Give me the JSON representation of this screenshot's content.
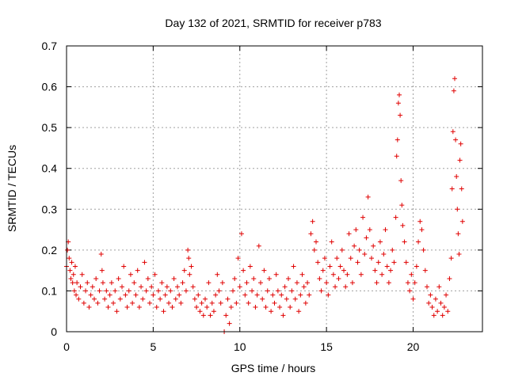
{
  "chart_data": {
    "type": "scatter",
    "title": "Day 132 of 2021, SRMTID for receiver p783",
    "xlabel": "GPS time / hours",
    "ylabel": "SRMTID / TECUs",
    "xlim": [
      0,
      24
    ],
    "ylim": [
      0,
      0.7
    ],
    "xticks": [
      0,
      5,
      10,
      15,
      20
    ],
    "yticks": [
      0,
      0.1,
      0.2,
      0.3,
      0.4,
      0.5,
      0.6,
      0.7
    ],
    "grid": true,
    "marker": "+",
    "color": "#e00000",
    "series": [
      {
        "name": "SRMTID",
        "points": [
          [
            0.0,
            0.16
          ],
          [
            0.05,
            0.2
          ],
          [
            0.1,
            0.22
          ],
          [
            0.15,
            0.18
          ],
          [
            0.2,
            0.15
          ],
          [
            0.25,
            0.13
          ],
          [
            0.3,
            0.17
          ],
          [
            0.35,
            0.12
          ],
          [
            0.4,
            0.14
          ],
          [
            0.45,
            0.1
          ],
          [
            0.5,
            0.16
          ],
          [
            0.55,
            0.09
          ],
          [
            0.6,
            0.12
          ],
          [
            0.7,
            0.08
          ],
          [
            0.8,
            0.11
          ],
          [
            0.9,
            0.14
          ],
          [
            1.0,
            0.07
          ],
          [
            1.1,
            0.1
          ],
          [
            1.2,
            0.12
          ],
          [
            1.3,
            0.06
          ],
          [
            1.4,
            0.09
          ],
          [
            1.5,
            0.11
          ],
          [
            1.6,
            0.08
          ],
          [
            1.7,
            0.13
          ],
          [
            1.8,
            0.07
          ],
          [
            1.9,
            0.1
          ],
          [
            2.0,
            0.19
          ],
          [
            2.05,
            0.15
          ],
          [
            2.1,
            0.12
          ],
          [
            2.2,
            0.08
          ],
          [
            2.3,
            0.1
          ],
          [
            2.4,
            0.06
          ],
          [
            2.5,
            0.09
          ],
          [
            2.6,
            0.12
          ],
          [
            2.7,
            0.07
          ],
          [
            2.8,
            0.1
          ],
          [
            2.9,
            0.05
          ],
          [
            3.0,
            0.13
          ],
          [
            3.1,
            0.08
          ],
          [
            3.2,
            0.11
          ],
          [
            3.3,
            0.16
          ],
          [
            3.4,
            0.09
          ],
          [
            3.5,
            0.06
          ],
          [
            3.6,
            0.1
          ],
          [
            3.7,
            0.14
          ],
          [
            3.8,
            0.07
          ],
          [
            3.9,
            0.12
          ],
          [
            4.0,
            0.09
          ],
          [
            4.1,
            0.15
          ],
          [
            4.2,
            0.06
          ],
          [
            4.3,
            0.11
          ],
          [
            4.4,
            0.08
          ],
          [
            4.5,
            0.17
          ],
          [
            4.6,
            0.1
          ],
          [
            4.7,
            0.13
          ],
          [
            4.8,
            0.07
          ],
          [
            4.9,
            0.11
          ],
          [
            5.0,
            0.09
          ],
          [
            5.1,
            0.14
          ],
          [
            5.2,
            0.06
          ],
          [
            5.3,
            0.1
          ],
          [
            5.4,
            0.08
          ],
          [
            5.5,
            0.12
          ],
          [
            5.6,
            0.05
          ],
          [
            5.7,
            0.09
          ],
          [
            5.8,
            0.11
          ],
          [
            5.9,
            0.07
          ],
          [
            6.0,
            0.1
          ],
          [
            6.1,
            0.06
          ],
          [
            6.2,
            0.13
          ],
          [
            6.3,
            0.08
          ],
          [
            6.4,
            0.11
          ],
          [
            6.5,
            0.09
          ],
          [
            6.6,
            0.07
          ],
          [
            6.7,
            0.12
          ],
          [
            6.8,
            0.15
          ],
          [
            6.9,
            0.1
          ],
          [
            7.0,
            0.2
          ],
          [
            7.05,
            0.18
          ],
          [
            7.1,
            0.14
          ],
          [
            7.2,
            0.16
          ],
          [
            7.3,
            0.11
          ],
          [
            7.4,
            0.08
          ],
          [
            7.5,
            0.06
          ],
          [
            7.6,
            0.09
          ],
          [
            7.7,
            0.05
          ],
          [
            7.8,
            0.07
          ],
          [
            7.9,
            0.04
          ],
          [
            8.0,
            0.08
          ],
          [
            8.1,
            0.06
          ],
          [
            8.2,
            0.12
          ],
          [
            8.3,
            0.04
          ],
          [
            8.4,
            0.07
          ],
          [
            8.5,
            0.05
          ],
          [
            8.6,
            0.09
          ],
          [
            8.7,
            0.14
          ],
          [
            8.8,
            0.1
          ],
          [
            8.9,
            0.07
          ],
          [
            9.0,
            0.12
          ],
          [
            9.1,
            0.0
          ],
          [
            9.2,
            0.04
          ],
          [
            9.3,
            0.08
          ],
          [
            9.4,
            0.02
          ],
          [
            9.5,
            0.06
          ],
          [
            9.6,
            0.1
          ],
          [
            9.7,
            0.13
          ],
          [
            9.8,
            0.07
          ],
          [
            9.9,
            0.18
          ],
          [
            10.0,
            0.11
          ],
          [
            10.1,
            0.24
          ],
          [
            10.2,
            0.15
          ],
          [
            10.3,
            0.09
          ],
          [
            10.4,
            0.12
          ],
          [
            10.5,
            0.07
          ],
          [
            10.6,
            0.16
          ],
          [
            10.7,
            0.1
          ],
          [
            10.8,
            0.13
          ],
          [
            10.9,
            0.06
          ],
          [
            11.0,
            0.09
          ],
          [
            11.1,
            0.21
          ],
          [
            11.2,
            0.12
          ],
          [
            11.3,
            0.08
          ],
          [
            11.4,
            0.15
          ],
          [
            11.5,
            0.06
          ],
          [
            11.6,
            0.1
          ],
          [
            11.7,
            0.13
          ],
          [
            11.8,
            0.05
          ],
          [
            11.9,
            0.09
          ],
          [
            12.0,
            0.07
          ],
          [
            12.1,
            0.14
          ],
          [
            12.2,
            0.1
          ],
          [
            12.3,
            0.06
          ],
          [
            12.4,
            0.09
          ],
          [
            12.5,
            0.04
          ],
          [
            12.6,
            0.11
          ],
          [
            12.7,
            0.08
          ],
          [
            12.8,
            0.13
          ],
          [
            12.9,
            0.06
          ],
          [
            13.0,
            0.1
          ],
          [
            13.1,
            0.16
          ],
          [
            13.2,
            0.08
          ],
          [
            13.3,
            0.12
          ],
          [
            13.4,
            0.05
          ],
          [
            13.5,
            0.09
          ],
          [
            13.6,
            0.14
          ],
          [
            13.7,
            0.11
          ],
          [
            13.8,
            0.07
          ],
          [
            13.9,
            0.12
          ],
          [
            14.0,
            0.09
          ],
          [
            14.1,
            0.24
          ],
          [
            14.2,
            0.27
          ],
          [
            14.3,
            0.2
          ],
          [
            14.4,
            0.22
          ],
          [
            14.5,
            0.17
          ],
          [
            14.6,
            0.13
          ],
          [
            14.7,
            0.1
          ],
          [
            14.8,
            0.15
          ],
          [
            14.9,
            0.18
          ],
          [
            15.0,
            0.12
          ],
          [
            15.1,
            0.09
          ],
          [
            15.2,
            0.16
          ],
          [
            15.3,
            0.22
          ],
          [
            15.4,
            0.14
          ],
          [
            15.5,
            0.11
          ],
          [
            15.6,
            0.18
          ],
          [
            15.7,
            0.13
          ],
          [
            15.8,
            0.16
          ],
          [
            15.9,
            0.2
          ],
          [
            16.0,
            0.15
          ],
          [
            16.1,
            0.11
          ],
          [
            16.2,
            0.14
          ],
          [
            16.3,
            0.24
          ],
          [
            16.4,
            0.18
          ],
          [
            16.5,
            0.12
          ],
          [
            16.6,
            0.21
          ],
          [
            16.7,
            0.25
          ],
          [
            16.8,
            0.17
          ],
          [
            16.9,
            0.2
          ],
          [
            17.0,
            0.14
          ],
          [
            17.1,
            0.28
          ],
          [
            17.2,
            0.19
          ],
          [
            17.3,
            0.23
          ],
          [
            17.4,
            0.33
          ],
          [
            17.5,
            0.25
          ],
          [
            17.6,
            0.18
          ],
          [
            17.7,
            0.21
          ],
          [
            17.8,
            0.15
          ],
          [
            17.9,
            0.12
          ],
          [
            18.0,
            0.17
          ],
          [
            18.1,
            0.22
          ],
          [
            18.2,
            0.14
          ],
          [
            18.3,
            0.19
          ],
          [
            18.4,
            0.25
          ],
          [
            18.5,
            0.16
          ],
          [
            18.6,
            0.12
          ],
          [
            18.7,
            0.15
          ],
          [
            18.8,
            0.2
          ],
          [
            18.9,
            0.17
          ],
          [
            19.0,
            0.28
          ],
          [
            19.05,
            0.43
          ],
          [
            19.1,
            0.47
          ],
          [
            19.15,
            0.56
          ],
          [
            19.2,
            0.58
          ],
          [
            19.25,
            0.53
          ],
          [
            19.3,
            0.37
          ],
          [
            19.35,
            0.31
          ],
          [
            19.4,
            0.26
          ],
          [
            19.5,
            0.22
          ],
          [
            19.6,
            0.17
          ],
          [
            19.7,
            0.12
          ],
          [
            19.8,
            0.1
          ],
          [
            19.9,
            0.14
          ],
          [
            20.0,
            0.08
          ],
          [
            20.1,
            0.12
          ],
          [
            20.2,
            0.16
          ],
          [
            20.3,
            0.22
          ],
          [
            20.4,
            0.27
          ],
          [
            20.5,
            0.25
          ],
          [
            20.6,
            0.2
          ],
          [
            20.7,
            0.15
          ],
          [
            20.8,
            0.11
          ],
          [
            20.9,
            0.07
          ],
          [
            21.0,
            0.09
          ],
          [
            21.1,
            0.06
          ],
          [
            21.2,
            0.04
          ],
          [
            21.3,
            0.08
          ],
          [
            21.4,
            0.05
          ],
          [
            21.5,
            0.11
          ],
          [
            21.6,
            0.07
          ],
          [
            21.7,
            0.04
          ],
          [
            21.8,
            0.06
          ],
          [
            21.9,
            0.09
          ],
          [
            22.0,
            0.05
          ],
          [
            22.1,
            0.13
          ],
          [
            22.2,
            0.18
          ],
          [
            22.25,
            0.35
          ],
          [
            22.3,
            0.49
          ],
          [
            22.35,
            0.59
          ],
          [
            22.4,
            0.62
          ],
          [
            22.45,
            0.47
          ],
          [
            22.5,
            0.38
          ],
          [
            22.55,
            0.3
          ],
          [
            22.6,
            0.24
          ],
          [
            22.65,
            0.19
          ],
          [
            22.7,
            0.42
          ],
          [
            22.75,
            0.46
          ],
          [
            22.8,
            0.35
          ],
          [
            22.85,
            0.27
          ]
        ]
      }
    ]
  }
}
